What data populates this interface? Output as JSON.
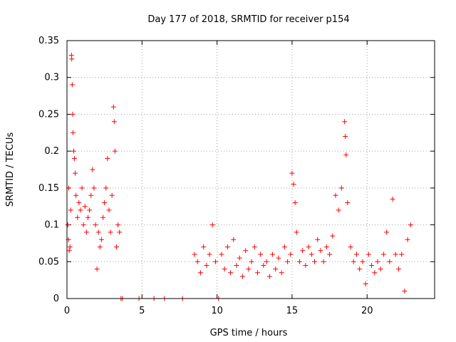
{
  "chart_data": {
    "type": "scatter",
    "title": "Day 177 of 2018, SRMTID for receiver p154",
    "xlabel": "GPS time / hours",
    "ylabel": "SRMTID / TECUs",
    "xlim": [
      0,
      24.5
    ],
    "ylim": [
      0,
      0.35
    ],
    "xticks": [
      0,
      5,
      10,
      15,
      20
    ],
    "xtick_labels": [
      "0",
      "5",
      "10",
      "15",
      "20"
    ],
    "yticks": [
      0,
      0.05,
      0.1,
      0.15,
      0.2,
      0.25,
      0.3,
      0.35
    ],
    "ytick_labels": [
      "0",
      "0.05",
      "0.1",
      "0.15",
      "0.2",
      "0.25",
      "0.3",
      "0.35"
    ],
    "grid": true,
    "marker": "+",
    "marker_color": "#ff0000",
    "series": [
      {
        "name": "SRMTID",
        "points": [
          [
            0.05,
            0.1
          ],
          [
            0.1,
            0.08
          ],
          [
            0.12,
            0.15
          ],
          [
            0.15,
            0.065
          ],
          [
            0.2,
            0.07
          ],
          [
            0.25,
            0.12
          ],
          [
            0.3,
            0.33
          ],
          [
            0.32,
            0.325
          ],
          [
            0.35,
            0.29
          ],
          [
            0.38,
            0.25
          ],
          [
            0.4,
            0.225
          ],
          [
            0.45,
            0.2
          ],
          [
            0.5,
            0.19
          ],
          [
            0.55,
            0.17
          ],
          [
            0.6,
            0.14
          ],
          [
            0.7,
            0.11
          ],
          [
            0.8,
            0.13
          ],
          [
            0.9,
            0.12
          ],
          [
            1.0,
            0.15
          ],
          [
            1.1,
            0.1
          ],
          [
            1.2,
            0.125
          ],
          [
            1.3,
            0.09
          ],
          [
            1.4,
            0.11
          ],
          [
            1.5,
            0.12
          ],
          [
            1.6,
            0.14
          ],
          [
            1.7,
            0.175
          ],
          [
            1.8,
            0.15
          ],
          [
            1.9,
            0.1
          ],
          [
            2.0,
            0.04
          ],
          [
            2.1,
            0.09
          ],
          [
            2.2,
            0.07
          ],
          [
            2.3,
            0.08
          ],
          [
            2.4,
            0.11
          ],
          [
            2.5,
            0.13
          ],
          [
            2.6,
            0.15
          ],
          [
            2.7,
            0.19
          ],
          [
            2.8,
            0.12
          ],
          [
            2.9,
            0.09
          ],
          [
            3.0,
            0.14
          ],
          [
            3.1,
            0.26
          ],
          [
            3.15,
            0.24
          ],
          [
            3.2,
            0.2
          ],
          [
            3.3,
            0.07
          ],
          [
            3.4,
            0.1
          ],
          [
            3.5,
            0.09
          ],
          [
            3.6,
            0.0
          ],
          [
            3.7,
            0.0
          ],
          [
            4.8,
            0.0
          ],
          [
            5.8,
            0.0
          ],
          [
            6.5,
            0.0
          ],
          [
            7.7,
            0.0
          ],
          [
            8.5,
            0.06
          ],
          [
            8.7,
            0.05
          ],
          [
            8.9,
            0.035
          ],
          [
            9.1,
            0.07
          ],
          [
            9.3,
            0.045
          ],
          [
            9.5,
            0.06
          ],
          [
            9.7,
            0.1
          ],
          [
            9.9,
            0.05
          ],
          [
            10.1,
            0.0
          ],
          [
            10.3,
            0.06
          ],
          [
            10.5,
            0.04
          ],
          [
            10.7,
            0.07
          ],
          [
            10.9,
            0.035
          ],
          [
            11.1,
            0.08
          ],
          [
            11.3,
            0.045
          ],
          [
            11.5,
            0.055
          ],
          [
            11.7,
            0.03
          ],
          [
            11.9,
            0.065
          ],
          [
            12.1,
            0.04
          ],
          [
            12.3,
            0.05
          ],
          [
            12.5,
            0.07
          ],
          [
            12.7,
            0.035
          ],
          [
            12.9,
            0.06
          ],
          [
            13.1,
            0.045
          ],
          [
            13.3,
            0.05
          ],
          [
            13.5,
            0.03
          ],
          [
            13.7,
            0.06
          ],
          [
            13.9,
            0.04
          ],
          [
            14.1,
            0.055
          ],
          [
            14.3,
            0.035
          ],
          [
            14.5,
            0.07
          ],
          [
            14.7,
            0.05
          ],
          [
            14.9,
            0.06
          ],
          [
            15.0,
            0.17
          ],
          [
            15.1,
            0.155
          ],
          [
            15.2,
            0.13
          ],
          [
            15.3,
            0.09
          ],
          [
            15.5,
            0.05
          ],
          [
            15.7,
            0.065
          ],
          [
            15.9,
            0.045
          ],
          [
            16.1,
            0.07
          ],
          [
            16.3,
            0.06
          ],
          [
            16.5,
            0.05
          ],
          [
            16.7,
            0.08
          ],
          [
            16.9,
            0.065
          ],
          [
            17.1,
            0.05
          ],
          [
            17.3,
            0.07
          ],
          [
            17.5,
            0.06
          ],
          [
            17.7,
            0.085
          ],
          [
            17.9,
            0.14
          ],
          [
            18.1,
            0.12
          ],
          [
            18.3,
            0.15
          ],
          [
            18.5,
            0.24
          ],
          [
            18.55,
            0.22
          ],
          [
            18.6,
            0.195
          ],
          [
            18.7,
            0.13
          ],
          [
            18.9,
            0.07
          ],
          [
            19.1,
            0.05
          ],
          [
            19.3,
            0.06
          ],
          [
            19.5,
            0.04
          ],
          [
            19.7,
            0.05
          ],
          [
            19.9,
            0.02
          ],
          [
            20.1,
            0.06
          ],
          [
            20.3,
            0.045
          ],
          [
            20.5,
            0.035
          ],
          [
            20.7,
            0.05
          ],
          [
            20.9,
            0.04
          ],
          [
            21.1,
            0.06
          ],
          [
            21.3,
            0.09
          ],
          [
            21.5,
            0.05
          ],
          [
            21.7,
            0.135
          ],
          [
            21.9,
            0.06
          ],
          [
            22.1,
            0.04
          ],
          [
            22.3,
            0.06
          ],
          [
            22.5,
            0.01
          ],
          [
            22.7,
            0.08
          ],
          [
            22.9,
            0.1
          ]
        ]
      }
    ]
  }
}
